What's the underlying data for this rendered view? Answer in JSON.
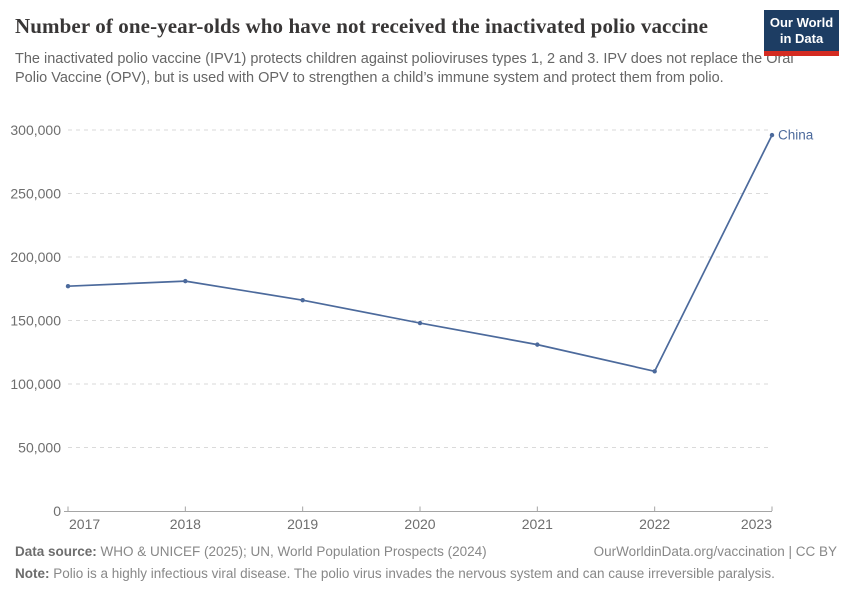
{
  "header": {
    "title": "Number of one-year-olds who have not received the inactivated polio vaccine",
    "subtitle": "The inactivated polio vaccine (IPV1) protects children against polioviruses types 1, 2 and 3. IPV does not replace the Oral Polio Vaccine (OPV), but is used with OPV to strengthen a child’s immune system and protect them from polio.",
    "logo": {
      "line1": "Our World",
      "line2": "in Data"
    }
  },
  "chart_data": {
    "type": "line",
    "title": "Number of one-year-olds who have not received the inactivated polio vaccine",
    "x": [
      2017,
      2018,
      2019,
      2020,
      2021,
      2022,
      2023
    ],
    "xtick_labels": [
      "2017",
      "2018",
      "2019",
      "2020",
      "2021",
      "2022",
      "2023"
    ],
    "series": [
      {
        "name": "China",
        "values": [
          177000,
          181000,
          166000,
          148000,
          131000,
          110000,
          296000
        ],
        "color": "#4c6a9c"
      }
    ],
    "ylim": [
      0,
      300000
    ],
    "yticks": [
      0,
      50000,
      100000,
      150000,
      200000,
      250000,
      300000
    ],
    "ytick_labels": [
      "0",
      "50,000",
      "100,000",
      "150,000",
      "200,000",
      "250,000",
      "300,000"
    ],
    "grid": "horizontal-dashed",
    "legend_position": "end-of-line-label",
    "colors": {
      "line": "#4c6a9c",
      "grid": "#dadada",
      "axis": "#a5a5a5",
      "tick_label": "#6e6e6e",
      "end_label": "#4c6a9c"
    }
  },
  "footer": {
    "data_source_label": "Data source:",
    "data_source_text": " WHO & UNICEF (2025); UN, World Population Prospects (2024)",
    "citation": "OurWorldinData.org/vaccination | CC BY",
    "note_label": "Note:",
    "note_text": " Polio is a highly infectious viral disease. The polio virus invades the nervous system and can cause irreversible paralysis."
  }
}
